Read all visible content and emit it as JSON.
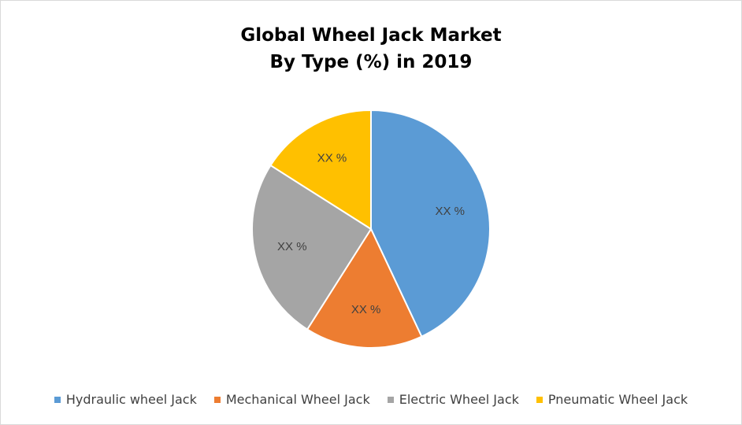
{
  "chart_data": {
    "type": "pie",
    "title_lines": [
      "Global Wheel Jack Market",
      "By Type (%) in 2019"
    ],
    "legend_position": "bottom",
    "series": [
      {
        "name": "Hydraulic wheel Jack",
        "value": 43,
        "label": "XX %",
        "color": "#5B9BD5"
      },
      {
        "name": "Mechanical Wheel Jack",
        "value": 16,
        "label": "XX %",
        "color": "#ED7D31"
      },
      {
        "name": "Electric Wheel Jack",
        "value": 25,
        "label": "XX %",
        "color": "#A5A5A5"
      },
      {
        "name": "Pneumatic Wheel Jack",
        "value": 16,
        "label": "XX %",
        "color": "#FFC000"
      }
    ]
  }
}
